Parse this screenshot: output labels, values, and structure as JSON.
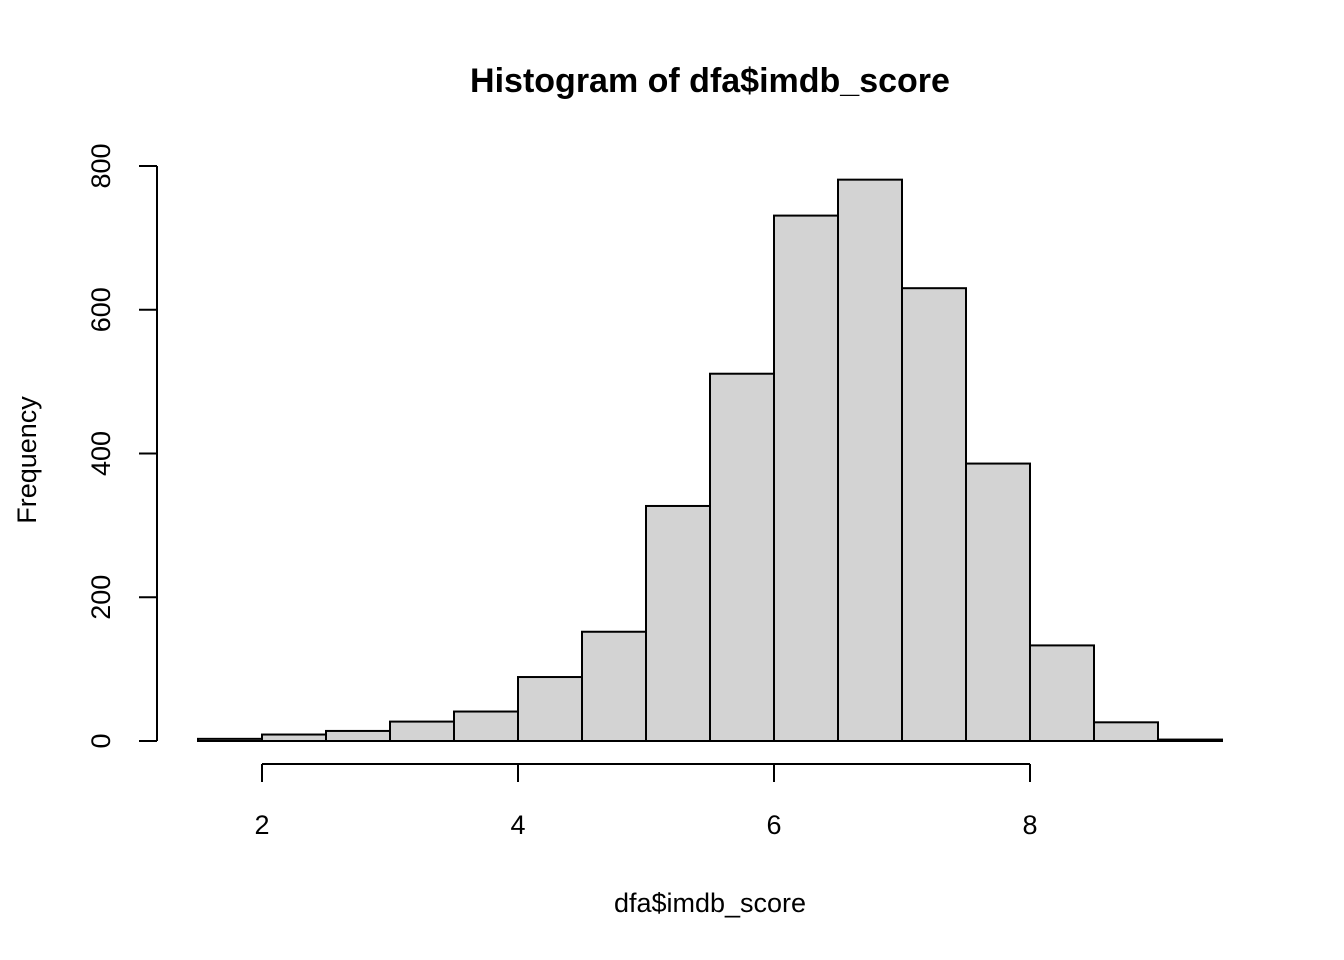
{
  "chart_data": {
    "type": "bar",
    "title": "Histogram of dfa$imdb_score",
    "xlabel": "dfa$imdb_score",
    "ylabel": "Frequency",
    "bin_edges": [
      1.5,
      2.0,
      2.5,
      3.0,
      3.5,
      4.0,
      4.5,
      5.0,
      5.5,
      6.0,
      6.5,
      7.0,
      7.5,
      8.0,
      8.5,
      9.0,
      9.5
    ],
    "values": [
      3,
      9,
      14,
      27,
      41,
      89,
      152,
      327,
      511,
      731,
      781,
      630,
      386,
      133,
      26,
      2
    ],
    "x_ticks": [
      2,
      4,
      6,
      8
    ],
    "y_ticks": [
      0,
      200,
      400,
      600,
      800
    ],
    "xlim": [
      1.5,
      9.5
    ],
    "ylim": [
      0,
      800
    ],
    "colors": {
      "bar_fill": "#d3d3d3",
      "bar_stroke": "#000000"
    },
    "grid": false
  }
}
